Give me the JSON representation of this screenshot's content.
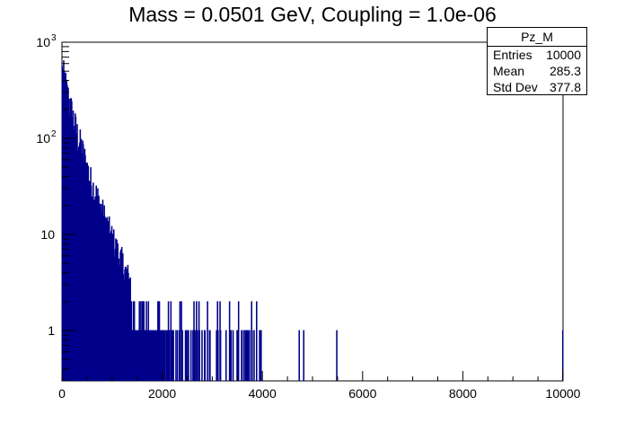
{
  "chart_data": {
    "type": "bar",
    "title": "Mass = 0.0501 GeV, Coupling = 1.0e-06",
    "xlabel": "",
    "ylabel": "",
    "xlim": [
      0,
      10000
    ],
    "ylim": [
      0.3,
      1000
    ],
    "yscale": "log",
    "grid": false,
    "legend": "none",
    "bar_color": "#00008b",
    "x_ticks": [
      {
        "value": 0,
        "label": "0"
      },
      {
        "value": 2000,
        "label": "2000"
      },
      {
        "value": 4000,
        "label": "4000"
      },
      {
        "value": 6000,
        "label": "6000"
      },
      {
        "value": 8000,
        "label": "8000"
      },
      {
        "value": 10000,
        "label": "10000"
      }
    ],
    "y_ticks": [
      {
        "value": 1,
        "base": "1",
        "exp": ""
      },
      {
        "value": 10,
        "base": "10",
        "exp": ""
      },
      {
        "value": 100,
        "base": "10",
        "exp": "2"
      },
      {
        "value": 1000,
        "base": "10",
        "exp": "3"
      }
    ],
    "bin_width": 10,
    "histogram_envelope": [
      [
        0,
        500
      ],
      [
        50,
        420
      ],
      [
        100,
        300
      ],
      [
        200,
        180
      ],
      [
        300,
        110
      ],
      [
        400,
        75
      ],
      [
        500,
        48
      ],
      [
        600,
        32
      ],
      [
        700,
        24
      ],
      [
        800,
        17
      ],
      [
        900,
        12
      ],
      [
        1000,
        9
      ],
      [
        1100,
        6.5
      ],
      [
        1200,
        5
      ],
      [
        1300,
        3.6
      ],
      [
        1400,
        2.8
      ],
      [
        1500,
        2.3
      ],
      [
        1600,
        2
      ],
      [
        1800,
        1.7
      ],
      [
        2000,
        1.5
      ],
      [
        2200,
        1.2
      ],
      [
        2400,
        1.0
      ],
      [
        2600,
        0.8
      ],
      [
        3000,
        0.6
      ],
      [
        3600,
        0.4
      ],
      [
        4000,
        0.3
      ]
    ],
    "isolated_bins": [
      {
        "x": 3690,
        "value": 1
      },
      {
        "x": 3830,
        "value": 1
      },
      {
        "x": 4730,
        "value": 1
      },
      {
        "x": 4820,
        "value": 1
      },
      {
        "x": 5480,
        "value": 1
      },
      {
        "x": 9990,
        "value": 1
      }
    ]
  },
  "stats": {
    "name": "Pz_M",
    "rows": [
      {
        "label": "Entries",
        "value": "10000"
      },
      {
        "label": "Mean",
        "value": "285.3"
      },
      {
        "label": "Std Dev",
        "value": "377.8"
      }
    ]
  }
}
